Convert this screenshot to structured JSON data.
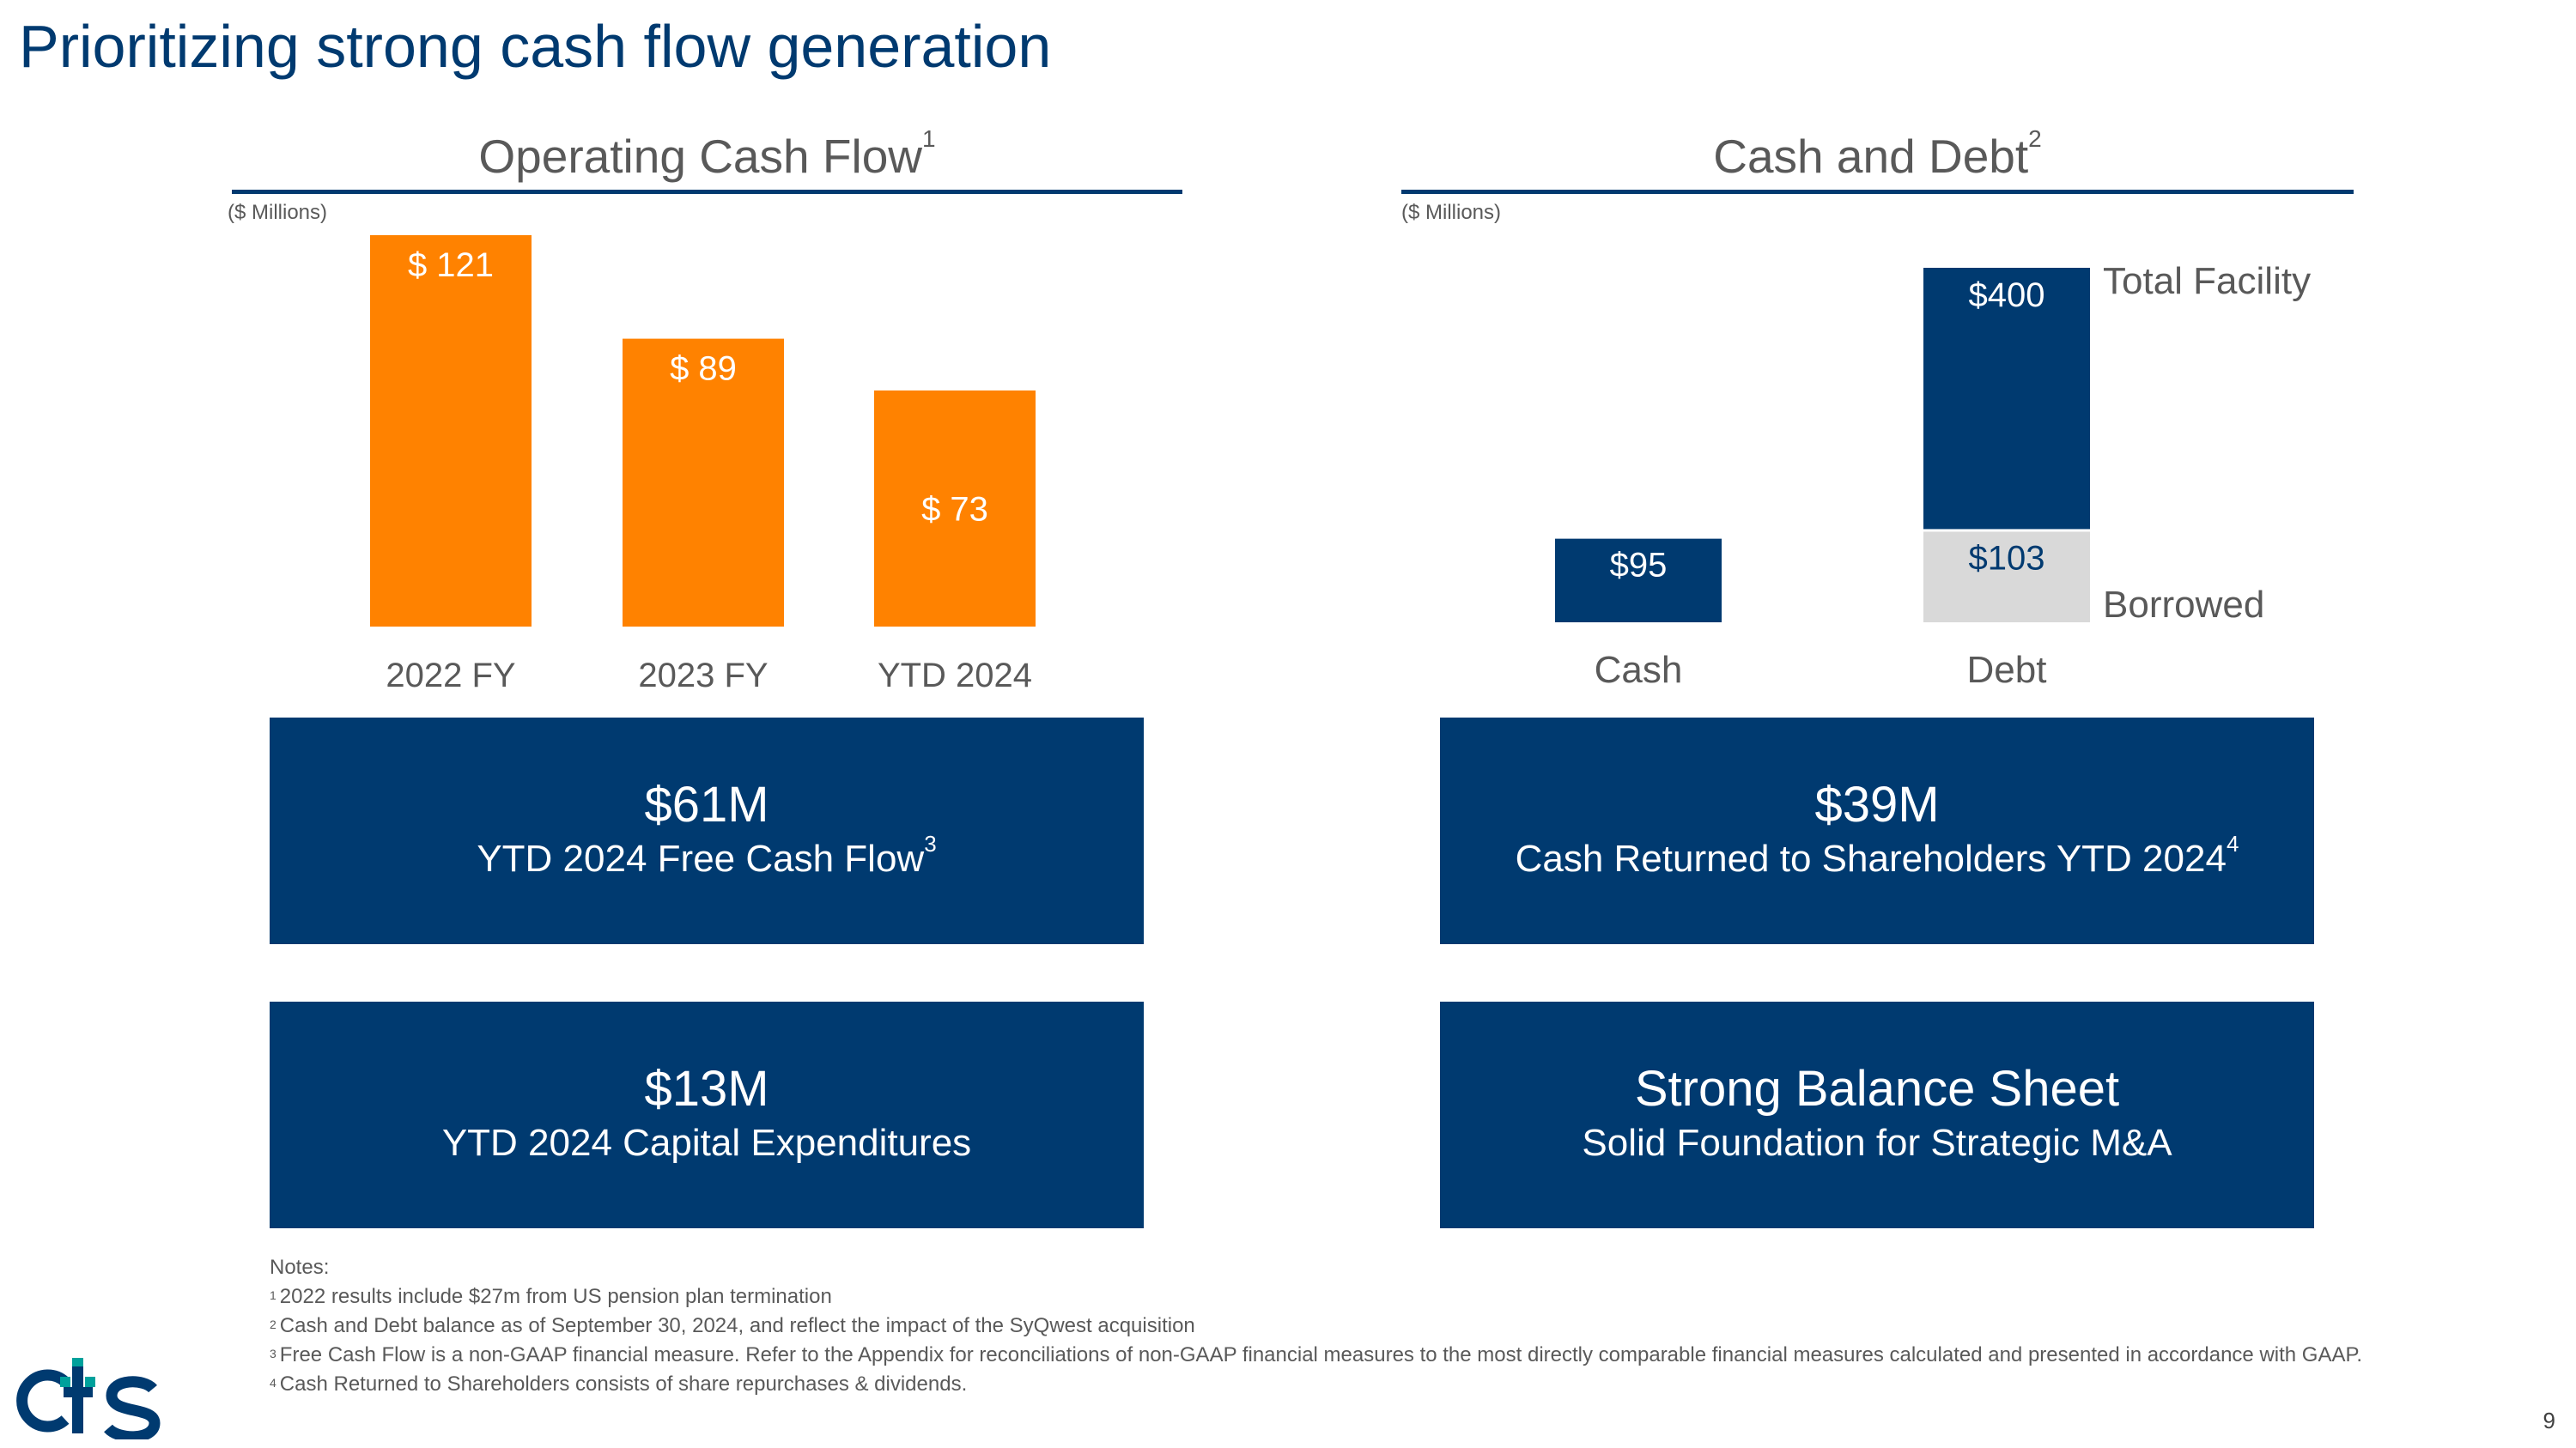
{
  "slide": {
    "title": "Prioritizing strong cash flow generation",
    "page_number": "9",
    "logo_text": "cts"
  },
  "ocf": {
    "title": "Operating Cash Flow",
    "title_sup": "1",
    "units": "($ Millions)"
  },
  "cash_debt": {
    "title": "Cash and Debt",
    "title_sup": "2",
    "units": "($ Millions)"
  },
  "boxes": [
    {
      "big": "$61M",
      "small": "YTD 2024 Free Cash Flow",
      "sup": "3"
    },
    {
      "big": "$39M",
      "small": "Cash Returned to Shareholders YTD 2024",
      "sup": "4"
    },
    {
      "big": "$13M",
      "small": "YTD 2024 Capital Expenditures",
      "sup": ""
    },
    {
      "big": "Strong Balance Sheet",
      "small": "Solid Foundation for Strategic M&A",
      "sup": ""
    }
  ],
  "notes": {
    "heading": "Notes:",
    "items": [
      {
        "sup": "1",
        "text": "2022 results include $27m from US pension plan termination"
      },
      {
        "sup": "2",
        "text": "Cash and Debt balance as of September 30, 2024, and reflect the impact of the SyQwest acquisition"
      },
      {
        "sup": "3",
        "text": "Free Cash Flow is a non-GAAP financial measure. Refer to the Appendix for reconciliations of non-GAAP financial measures to the most directly comparable financial measures calculated and presented in accordance with GAAP."
      },
      {
        "sup": "4",
        "text": "Cash Returned to Shareholders consists of share repurchases & dividends."
      }
    ]
  },
  "colors": {
    "navy": "#003a70",
    "orange": "#ff8200",
    "light_gray": "#d9d9d9",
    "logo_teal": "#00a19c"
  },
  "chart_data": [
    {
      "type": "bar",
      "title": "Operating Cash Flow",
      "categories": [
        "2022 FY",
        "2023 FY",
        "YTD 2024"
      ],
      "values": [
        121,
        89,
        73
      ],
      "data_labels": [
        "$ 121",
        "$ 89",
        "$ 73"
      ],
      "units": "($ Millions)",
      "ylim": [
        0,
        121
      ],
      "grid": false,
      "color": "#ff8200"
    },
    {
      "type": "bar",
      "title": "Cash and Debt",
      "categories": [
        "Cash",
        "Debt"
      ],
      "series": [
        {
          "name": "Borrowed",
          "values": [
            95,
            103
          ],
          "data_labels": [
            "$95",
            "$103"
          ],
          "colors": [
            "#003a70",
            "#d9d9d9"
          ]
        },
        {
          "name": "Total Facility",
          "values": [
            0,
            297
          ],
          "data_labels": [
            "",
            "$400"
          ],
          "colors": [
            "#003a70",
            "#003a70"
          ]
        }
      ],
      "units": "($ Millions)",
      "ylim": [
        0,
        400
      ],
      "grid": false,
      "stacked": true
    }
  ]
}
